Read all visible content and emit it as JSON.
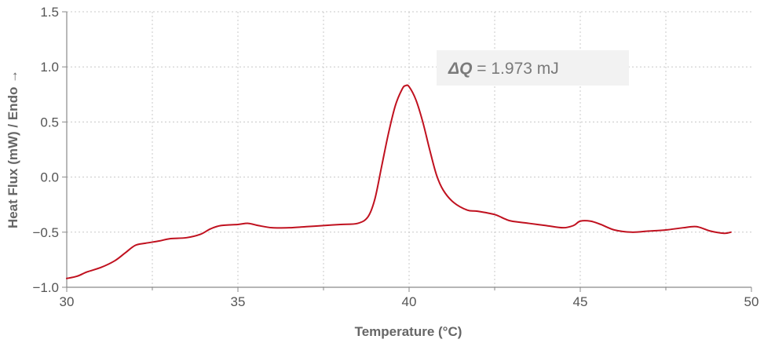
{
  "chart_data": {
    "type": "line",
    "xlabel": "Temperature (°C)",
    "ylabel": "Heat Flux (mW) / Endo →",
    "xlim": [
      30,
      50
    ],
    "ylim": [
      -1.0,
      1.5
    ],
    "x_ticks": [
      "30",
      "35",
      "40",
      "45",
      "50"
    ],
    "y_ticks": [
      "−1.0",
      "−0.5",
      "0.0",
      "0.5",
      "1.0",
      "1.5"
    ],
    "x_tick_values": [
      30,
      35,
      40,
      45,
      50
    ],
    "y_tick_values": [
      -1.0,
      -0.5,
      0.0,
      0.5,
      1.0,
      1.5
    ],
    "grid": true,
    "line_color": "#c0111f",
    "annotation": {
      "symbol": "ΔQ",
      "text": " = 1.973 mJ"
    },
    "series": [
      {
        "values": [
          [
            30.0,
            -0.92
          ],
          [
            30.3,
            -0.9
          ],
          [
            30.6,
            -0.86
          ],
          [
            31.0,
            -0.82
          ],
          [
            31.4,
            -0.76
          ],
          [
            31.7,
            -0.69
          ],
          [
            32.0,
            -0.62
          ],
          [
            32.3,
            -0.6
          ],
          [
            32.7,
            -0.58
          ],
          [
            33.0,
            -0.56
          ],
          [
            33.5,
            -0.55
          ],
          [
            33.9,
            -0.52
          ],
          [
            34.2,
            -0.47
          ],
          [
            34.5,
            -0.44
          ],
          [
            35.0,
            -0.43
          ],
          [
            35.3,
            -0.42
          ],
          [
            35.6,
            -0.44
          ],
          [
            36.0,
            -0.46
          ],
          [
            36.5,
            -0.46
          ],
          [
            37.0,
            -0.45
          ],
          [
            37.5,
            -0.44
          ],
          [
            38.0,
            -0.43
          ],
          [
            38.5,
            -0.42
          ],
          [
            38.8,
            -0.36
          ],
          [
            39.0,
            -0.2
          ],
          [
            39.2,
            0.1
          ],
          [
            39.4,
            0.4
          ],
          [
            39.6,
            0.65
          ],
          [
            39.8,
            0.8
          ],
          [
            39.9,
            0.83
          ],
          [
            40.0,
            0.82
          ],
          [
            40.2,
            0.7
          ],
          [
            40.4,
            0.5
          ],
          [
            40.6,
            0.25
          ],
          [
            40.8,
            0.02
          ],
          [
            41.0,
            -0.12
          ],
          [
            41.3,
            -0.23
          ],
          [
            41.7,
            -0.3
          ],
          [
            42.0,
            -0.31
          ],
          [
            42.5,
            -0.34
          ],
          [
            42.8,
            -0.38
          ],
          [
            43.0,
            -0.4
          ],
          [
            43.5,
            -0.42
          ],
          [
            44.0,
            -0.44
          ],
          [
            44.5,
            -0.46
          ],
          [
            44.8,
            -0.44
          ],
          [
            45.0,
            -0.4
          ],
          [
            45.3,
            -0.4
          ],
          [
            45.6,
            -0.43
          ],
          [
            46.0,
            -0.48
          ],
          [
            46.5,
            -0.5
          ],
          [
            47.0,
            -0.49
          ],
          [
            47.5,
            -0.48
          ],
          [
            48.0,
            -0.46
          ],
          [
            48.4,
            -0.45
          ],
          [
            48.8,
            -0.49
          ],
          [
            49.2,
            -0.51
          ],
          [
            49.4,
            -0.5
          ]
        ]
      }
    ]
  }
}
